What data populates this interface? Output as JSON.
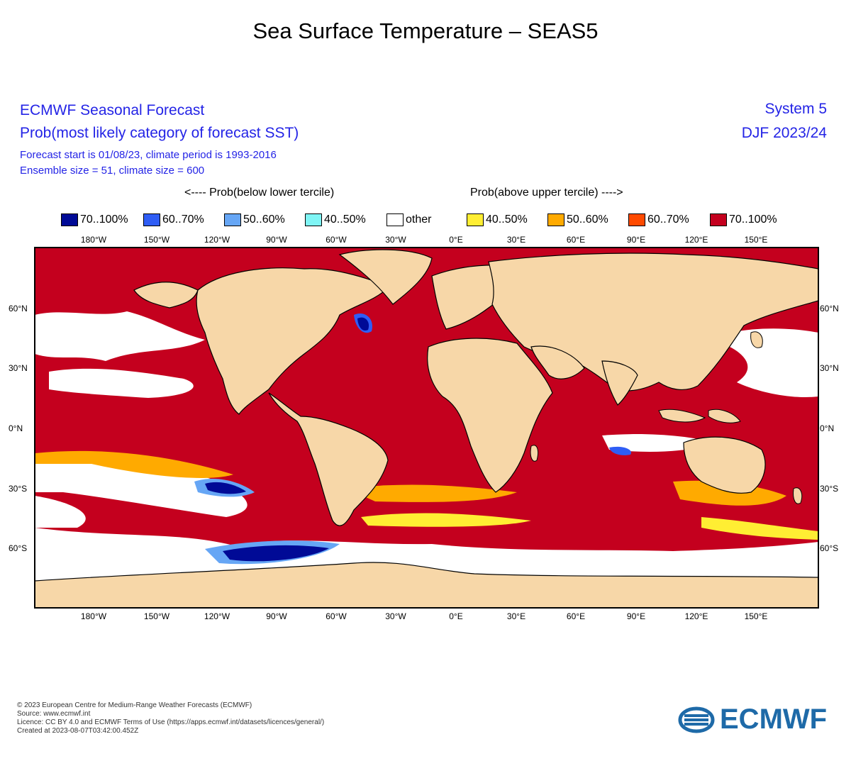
{
  "page_title": "Sea Surface Temperature – SEAS5",
  "header": {
    "title": "ECMWF Seasonal Forecast",
    "subtitle": "Prob(most likely category of forecast SST)",
    "forecast_start": "Forecast start is 01/08/23, climate period is 1993-2016",
    "ensemble": "Ensemble size = 51, climate size = 600",
    "system": "System 5",
    "period": "DJF 2023/24"
  },
  "legend": {
    "below_caption": "<---- Prob(below lower tercile)",
    "above_caption": "Prob(above upper tercile) ---->",
    "items": [
      {
        "label": "70..100%",
        "color": "#000a96"
      },
      {
        "label": "60..70%",
        "color": "#2f5df5"
      },
      {
        "label": "50..60%",
        "color": "#66a6f5"
      },
      {
        "label": "40..50%",
        "color": "#7ff5f5"
      },
      {
        "label": "other",
        "color": "#ffffff"
      },
      {
        "label": "40..50%",
        "color": "#ffee33"
      },
      {
        "label": "50..60%",
        "color": "#ffaa00"
      },
      {
        "label": "60..70%",
        "color": "#ff4a00"
      },
      {
        "label": "70..100%",
        "color": "#c4001e"
      }
    ]
  },
  "map": {
    "land_color": "#f7d7a8",
    "longitude_labels": [
      "180°W",
      "150°W",
      "120°W",
      "90°W",
      "60°W",
      "30°W",
      "0°E",
      "30°E",
      "60°E",
      "90°E",
      "120°E",
      "150°E"
    ],
    "latitude_labels": [
      "60°N",
      "30°N",
      "0°N",
      "30°S",
      "60°S"
    ]
  },
  "footer": {
    "copyright": "© 2023 European Centre for Medium-Range Weather Forecasts (ECMWF)",
    "source": "Source: www.ecmwf.int",
    "licence": "Licence: CC BY 4.0 and ECMWF Terms of Use (https://apps.ecmwf.int/datasets/licences/general/)",
    "created": "Created at 2023-08-07T03:42:00.452Z"
  },
  "logo": {
    "text": "ECMWF",
    "color": "#1e6aa8"
  }
}
